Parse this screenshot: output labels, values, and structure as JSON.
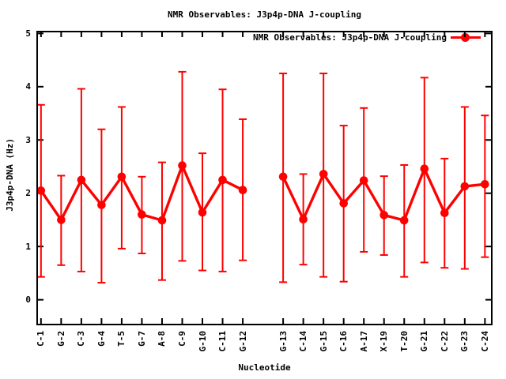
{
  "page": {
    "background": "#ffffff"
  },
  "chart_data": {
    "type": "line",
    "title": "NMR Observables: J3p4p-DNA J-coupling",
    "xlabel": "Nucleotide",
    "ylabel": "J3p4p-DNA (Hz)",
    "legend": {
      "label": "NMR Observables: J3p4p-DNA J-coupling",
      "position": "top-right-inside"
    },
    "series_color": "#ff0000",
    "axis_color": "#000000",
    "marker": "filled-circle",
    "error_bars": true,
    "grid": false,
    "ylim": [
      -0.45,
      5.02
    ],
    "yticks": [
      0,
      1,
      2,
      3,
      4,
      5
    ],
    "xlim": [
      -0.15,
      22.3
    ],
    "categories": [
      "C-1",
      "G-2",
      "C-3",
      "G-4",
      "T-5",
      "G-7",
      "A-8",
      "C-9",
      "G-10",
      "C-11",
      "G-12",
      "G-13",
      "C-14",
      "G-15",
      "C-16",
      "A-17",
      "X-19",
      "T-20",
      "G-21",
      "C-22",
      "G-23",
      "C-24"
    ],
    "points": [
      {
        "label": "C-1",
        "x": 0,
        "y": 2.05,
        "lo": 0.43,
        "hi": 3.66
      },
      {
        "label": "G-2",
        "x": 1,
        "y": 1.5,
        "lo": 0.65,
        "hi": 2.33
      },
      {
        "label": "C-3",
        "x": 2,
        "y": 2.25,
        "lo": 0.53,
        "hi": 3.96
      },
      {
        "label": "G-4",
        "x": 3,
        "y": 1.78,
        "lo": 0.32,
        "hi": 3.2
      },
      {
        "label": "T-5",
        "x": 4,
        "y": 2.31,
        "lo": 0.96,
        "hi": 3.62
      },
      {
        "label": "G-7",
        "x": 5,
        "y": 1.6,
        "lo": 0.87,
        "hi": 2.31
      },
      {
        "label": "A-8",
        "x": 6,
        "y": 1.49,
        "lo": 0.37,
        "hi": 2.58
      },
      {
        "label": "C-9",
        "x": 7,
        "y": 2.52,
        "lo": 0.73,
        "hi": 4.28
      },
      {
        "label": "G-10",
        "x": 8,
        "y": 1.64,
        "lo": 0.55,
        "hi": 2.75
      },
      {
        "label": "C-11",
        "x": 9,
        "y": 2.25,
        "lo": 0.53,
        "hi": 3.95
      },
      {
        "label": "G-12",
        "x": 10,
        "y": 2.06,
        "lo": 0.74,
        "hi": 3.39
      },
      {
        "label": "G-13",
        "x": 12,
        "y": 2.31,
        "lo": 0.33,
        "hi": 4.25
      },
      {
        "label": "C-14",
        "x": 13,
        "y": 1.51,
        "lo": 0.66,
        "hi": 2.36
      },
      {
        "label": "G-15",
        "x": 14,
        "y": 2.36,
        "lo": 0.43,
        "hi": 4.25
      },
      {
        "label": "C-16",
        "x": 15,
        "y": 1.81,
        "lo": 0.34,
        "hi": 3.27
      },
      {
        "label": "A-17",
        "x": 16,
        "y": 2.24,
        "lo": 0.9,
        "hi": 3.6
      },
      {
        "label": "X-19",
        "x": 17,
        "y": 1.59,
        "lo": 0.84,
        "hi": 2.32
      },
      {
        "label": "T-20",
        "x": 18,
        "y": 1.49,
        "lo": 0.43,
        "hi": 2.53
      },
      {
        "label": "G-21",
        "x": 19,
        "y": 2.46,
        "lo": 0.7,
        "hi": 4.17
      },
      {
        "label": "C-22",
        "x": 20,
        "y": 1.63,
        "lo": 0.6,
        "hi": 2.65
      },
      {
        "label": "G-23",
        "x": 21,
        "y": 2.13,
        "lo": 0.58,
        "hi": 3.62
      },
      {
        "label": "C-24",
        "x": 22,
        "y": 2.17,
        "lo": 0.8,
        "hi": 3.46
      }
    ],
    "segments": [
      [
        0,
        10
      ],
      [
        11,
        21
      ]
    ]
  }
}
